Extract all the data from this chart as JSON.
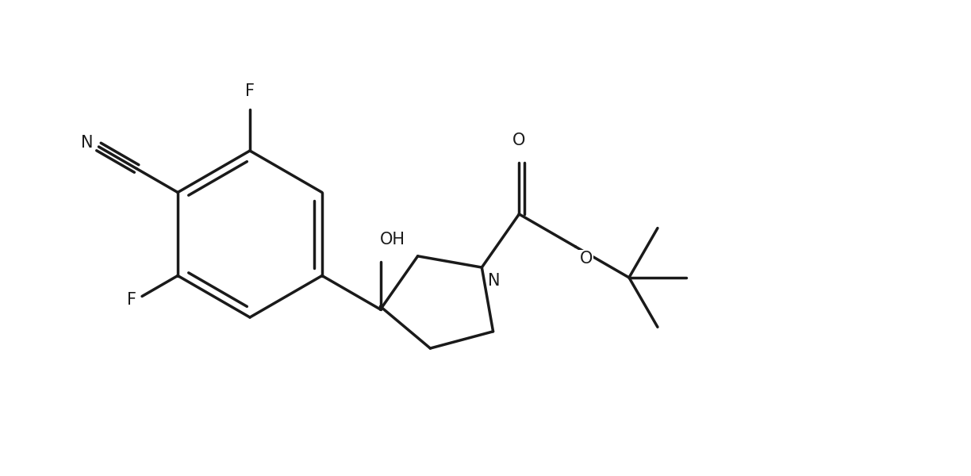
{
  "background_color": "#ffffff",
  "line_color": "#1a1a1a",
  "line_width": 2.5,
  "font_size_label": 15,
  "figsize": [
    12.24,
    6.0
  ],
  "dpi": 100,
  "xlim": [
    0.0,
    12.24
  ],
  "ylim": [
    0.0,
    6.0
  ]
}
